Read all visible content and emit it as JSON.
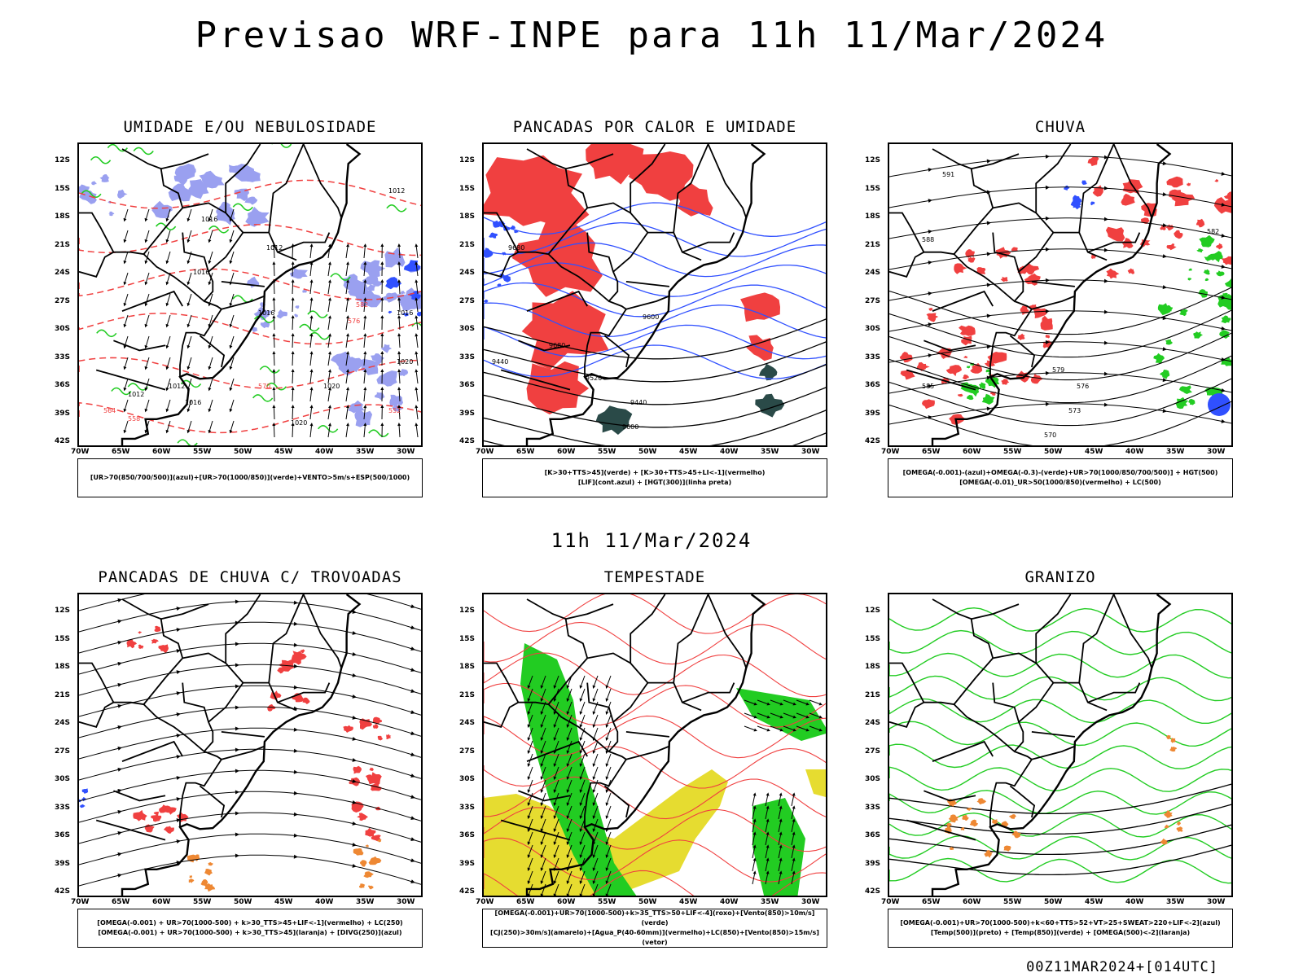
{
  "title": "Previsao WRF-INPE  para 11h 11/Mar/2024",
  "row_time": "11h 11/Mar/2024",
  "footer": "00Z11MAR2024+[014UTC]",
  "lat_ticks": [
    "12S",
    "15S",
    "18S",
    "21S",
    "24S",
    "27S",
    "30S",
    "33S",
    "36S",
    "39S",
    "42S"
  ],
  "lon_ticks": [
    "70W",
    "65W",
    "60W",
    "55W",
    "50W",
    "45W",
    "40W",
    "35W",
    "30W"
  ],
  "panels": [
    {
      "title": "UMIDADE E/OU NEBULOSIDADE",
      "legend": [
        "[UR>70(850/700/500)](azul)+[UR>70(1000/850)](verde)+VENTO>5m/s+ESP(500/1000)"
      ],
      "style": "umidade",
      "labels": [
        "1016",
        "1012",
        "1012",
        "1016",
        "1016",
        "1020",
        "1012",
        "1016",
        "1020",
        "1012",
        "1016",
        "582",
        "576",
        "570",
        "564",
        "558",
        "552",
        "1020"
      ]
    },
    {
      "title": "PANCADAS POR CALOR E UMIDADE",
      "legend": [
        "[K>30+TTS>45](verde) + [K>30+TTS>45+LI<-1](vermelho)",
        "[LIF](cont.azul) + [HGT(300)](linha preta)"
      ],
      "style": "calor",
      "labels": [
        "9680",
        "9600",
        "9680",
        "9520",
        "9440",
        "9600",
        "9440"
      ]
    },
    {
      "title": "CHUVA",
      "legend": [
        "[OMEGA(-0.001)-(azul)+OMEGA(-0.3)-(verde)+UR>70(1000/850/700/500)] + HGT(500)",
        "[OMEGA(-0.01)_UR>50(1000/850)(vermelho) + LC(500)"
      ],
      "style": "chuva",
      "labels": [
        "591",
        "588",
        "585",
        "582",
        "579",
        "576",
        "573",
        "570"
      ]
    },
    {
      "title": "PANCADAS DE CHUVA C/ TROVOADAS",
      "legend": [
        "[OMEGA(-0.001) + UR>70(1000-500) + k>30_TTS>45+LIF<-1](vermelho) + LC(250)",
        "[OMEGA(-0.001) + UR>70(1000-500) + k>30_TTS>45](laranja) + [DIVG(250)](azul)"
      ],
      "style": "trovoadas",
      "labels": []
    },
    {
      "title": "TEMPESTADE",
      "legend": [
        "[OMEGA(-0.001)+UR>70(1000-500)+k>35_TTS>50+LIF<-4](roxo)+[Vento(850)>10m/s](verde)",
        "[CJ(250)>30m/s](amarelo)+[Agua_P(40-60mm)](vermelho)+LC(850)+[Vento(850)>15m/s](vetor)"
      ],
      "style": "tempestade",
      "labels": []
    },
    {
      "title": "GRANIZO",
      "legend": [
        "[OMEGA(-0.001)+UR>70(1000-500)+k<60+TTS>52+VT>25+SWEAT>220+LIF<-2](azul)",
        "[Temp(500)](preto) + [Temp(850)](verde) + [OMEGA(500)<-2](laranja)"
      ],
      "style": "granizo",
      "labels": []
    }
  ],
  "colors": {
    "blue": "#3050ff",
    "lightblue": "#9aa0f0",
    "green": "#22cc22",
    "red": "#f04040",
    "orange": "#ee8833",
    "yellow": "#e6dc30",
    "darkteal": "#2a4a48"
  }
}
